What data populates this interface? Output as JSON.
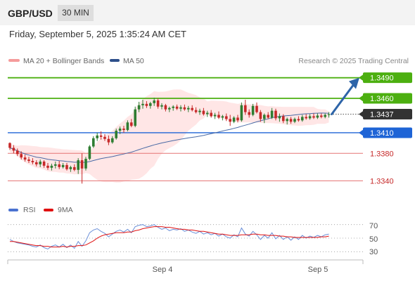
{
  "header": {
    "pair": "GBP/USD",
    "timeframe": "30 MIN"
  },
  "timestamp": "Friday, September 5, 2025 1:35:24 AM CET",
  "legend": {
    "ma20": "MA 20 + Bollinger Bands",
    "ma50": "MA 50"
  },
  "credit": "Research © 2025 Trading Central",
  "colors": {
    "bull": "#2e7d32",
    "bear": "#c62828",
    "resistance": "#4caf10",
    "support": "#1e64d6",
    "support_weak": "#e57373",
    "ma50": "#4a6aa5",
    "bollinger": "#ffd6d6",
    "current": "#333333",
    "rsi": "#6a8fd8",
    "rsi_ma": "#e01010",
    "arrow": "#2d64a8"
  },
  "chart_data": [
    {
      "type": "candlestick",
      "title": "GBP/USD",
      "timeframe": "30 MIN",
      "x_tick_labels": [
        "Sep 4",
        "Sep 5"
      ],
      "ylim": [
        1.332,
        1.3505
      ],
      "levels": [
        {
          "label": "1.3490",
          "value": 1.349,
          "kind": "resistance"
        },
        {
          "label": "1.3460",
          "value": 1.346,
          "kind": "resistance"
        },
        {
          "label": "1.3437",
          "value": 1.3437,
          "kind": "current"
        },
        {
          "label": "1.3410",
          "value": 1.341,
          "kind": "support"
        },
        {
          "label": "1.3380",
          "value": 1.338,
          "kind": "support_weak"
        },
        {
          "label": "1.3340",
          "value": 1.334,
          "kind": "support_weak"
        }
      ],
      "candles": [
        [
          1.3395,
          1.3396,
          1.3385,
          1.3388
        ],
        [
          1.3388,
          1.3392,
          1.338,
          1.3384
        ],
        [
          1.3384,
          1.3387,
          1.3376,
          1.3379
        ],
        [
          1.3379,
          1.3383,
          1.3371,
          1.3374
        ],
        [
          1.3374,
          1.3378,
          1.3368,
          1.3371
        ],
        [
          1.3371,
          1.3375,
          1.3366,
          1.3369
        ],
        [
          1.3369,
          1.3373,
          1.3364,
          1.3367
        ],
        [
          1.3367,
          1.337,
          1.3361,
          1.3364
        ],
        [
          1.3364,
          1.3371,
          1.336,
          1.3368
        ],
        [
          1.3368,
          1.337,
          1.3359,
          1.3362
        ],
        [
          1.3362,
          1.3366,
          1.3356,
          1.3359
        ],
        [
          1.3359,
          1.3365,
          1.3355,
          1.3362
        ],
        [
          1.3362,
          1.3368,
          1.3358,
          1.3364
        ],
        [
          1.3364,
          1.3369,
          1.3357,
          1.336
        ],
        [
          1.336,
          1.3366,
          1.3358,
          1.3363
        ],
        [
          1.3363,
          1.3366,
          1.3355,
          1.3357
        ],
        [
          1.3357,
          1.3362,
          1.3353,
          1.336
        ],
        [
          1.336,
          1.3364,
          1.3354,
          1.3356
        ],
        [
          1.3356,
          1.3373,
          1.335,
          1.337
        ],
        [
          1.337,
          1.338,
          1.3336,
          1.3358
        ],
        [
          1.3358,
          1.3375,
          1.3355,
          1.3372
        ],
        [
          1.3372,
          1.3392,
          1.337,
          1.339
        ],
        [
          1.339,
          1.3405,
          1.3388,
          1.3402
        ],
        [
          1.3402,
          1.341,
          1.3398,
          1.3406
        ],
        [
          1.3406,
          1.3412,
          1.34,
          1.3404
        ],
        [
          1.3404,
          1.3408,
          1.3398,
          1.3401
        ],
        [
          1.3401,
          1.3406,
          1.3392,
          1.3396
        ],
        [
          1.3396,
          1.3405,
          1.3394,
          1.3402
        ],
        [
          1.3402,
          1.3416,
          1.34,
          1.3413
        ],
        [
          1.3413,
          1.3419,
          1.3408,
          1.3416
        ],
        [
          1.3416,
          1.342,
          1.341,
          1.3414
        ],
        [
          1.3414,
          1.3428,
          1.3412,
          1.3425
        ],
        [
          1.3425,
          1.343,
          1.3418,
          1.342
        ],
        [
          1.342,
          1.3448,
          1.3418,
          1.3444
        ],
        [
          1.3444,
          1.3455,
          1.344,
          1.345
        ],
        [
          1.345,
          1.3458,
          1.3445,
          1.3452
        ],
        [
          1.3452,
          1.3456,
          1.3446,
          1.3449
        ],
        [
          1.3449,
          1.3455,
          1.3445,
          1.3453
        ],
        [
          1.3453,
          1.3461,
          1.3449,
          1.3457
        ],
        [
          1.3457,
          1.346,
          1.3445,
          1.3448
        ],
        [
          1.3448,
          1.3453,
          1.3444,
          1.345
        ],
        [
          1.345,
          1.3452,
          1.3441,
          1.3444
        ],
        [
          1.3444,
          1.3448,
          1.344,
          1.3446
        ],
        [
          1.3446,
          1.345,
          1.3442,
          1.3448
        ],
        [
          1.3448,
          1.3451,
          1.3443,
          1.3445
        ],
        [
          1.3445,
          1.345,
          1.3441,
          1.3447
        ],
        [
          1.3447,
          1.3451,
          1.3442,
          1.3444
        ],
        [
          1.3444,
          1.3449,
          1.344,
          1.3446
        ],
        [
          1.3446,
          1.345,
          1.3441,
          1.3443
        ],
        [
          1.3443,
          1.3447,
          1.3438,
          1.344
        ],
        [
          1.344,
          1.3445,
          1.3436,
          1.3442
        ],
        [
          1.3442,
          1.3446,
          1.3435,
          1.3437
        ],
        [
          1.3437,
          1.3442,
          1.3433,
          1.3439
        ],
        [
          1.3439,
          1.3443,
          1.3432,
          1.3434
        ],
        [
          1.3434,
          1.3439,
          1.343,
          1.3436
        ],
        [
          1.3436,
          1.3441,
          1.343,
          1.3432
        ],
        [
          1.3432,
          1.3436,
          1.3428,
          1.3434
        ],
        [
          1.3434,
          1.3438,
          1.3427,
          1.343
        ],
        [
          1.343,
          1.3436,
          1.342,
          1.3426
        ],
        [
          1.3426,
          1.3434,
          1.3424,
          1.3432
        ],
        [
          1.3432,
          1.3436,
          1.3425,
          1.3428
        ],
        [
          1.3428,
          1.3454,
          1.3426,
          1.345
        ],
        [
          1.345,
          1.3458,
          1.3436,
          1.344
        ],
        [
          1.344,
          1.3444,
          1.3432,
          1.3436
        ],
        [
          1.3436,
          1.3452,
          1.3434,
          1.3449
        ],
        [
          1.3449,
          1.3454,
          1.3438,
          1.344
        ],
        [
          1.344,
          1.3443,
          1.3426,
          1.343
        ],
        [
          1.343,
          1.3438,
          1.3424,
          1.3436
        ],
        [
          1.3436,
          1.344,
          1.343,
          1.3432
        ],
        [
          1.3432,
          1.3446,
          1.343,
          1.3442
        ],
        [
          1.3442,
          1.3445,
          1.3428,
          1.3431
        ],
        [
          1.3431,
          1.3438,
          1.3426,
          1.3434
        ],
        [
          1.3434,
          1.3437,
          1.3424,
          1.3427
        ],
        [
          1.3427,
          1.3432,
          1.3422,
          1.343
        ],
        [
          1.343,
          1.3433,
          1.3423,
          1.3426
        ],
        [
          1.3426,
          1.3432,
          1.3424,
          1.343
        ],
        [
          1.343,
          1.3434,
          1.3426,
          1.3428
        ],
        [
          1.3428,
          1.3436,
          1.3426,
          1.3433
        ],
        [
          1.3433,
          1.3437,
          1.3429,
          1.3431
        ],
        [
          1.3431,
          1.3437,
          1.3429,
          1.3434
        ],
        [
          1.3434,
          1.3438,
          1.343,
          1.3432
        ],
        [
          1.3432,
          1.3438,
          1.343,
          1.3435
        ],
        [
          1.3435,
          1.3438,
          1.3431,
          1.3433
        ],
        [
          1.3433,
          1.3438,
          1.3431,
          1.3436
        ],
        [
          1.3436,
          1.344,
          1.3432,
          1.3437
        ]
      ],
      "forecast_target": 1.349
    },
    {
      "type": "line",
      "title": "RSI",
      "series": [
        {
          "name": "RSI",
          "values": [
            48,
            45,
            43,
            42,
            41,
            40,
            38,
            37,
            40,
            36,
            34,
            38,
            40,
            37,
            41,
            36,
            40,
            35,
            45,
            38,
            46,
            58,
            62,
            64,
            60,
            57,
            52,
            56,
            60,
            62,
            59,
            63,
            58,
            67,
            69,
            70,
            67,
            68,
            70,
            66,
            63,
            65,
            61,
            63,
            62,
            64,
            60,
            62,
            59,
            57,
            60,
            56,
            58,
            55,
            57,
            53,
            56,
            52,
            50,
            55,
            52,
            65,
            56,
            53,
            60,
            55,
            48,
            54,
            50,
            58,
            49,
            54,
            48,
            52,
            47,
            52,
            48,
            54,
            50,
            53,
            51,
            54,
            52,
            55,
            56
          ]
        },
        {
          "name": "9MA",
          "values": [
            45,
            45,
            44,
            43,
            42,
            41,
            40,
            39,
            39,
            38,
            38,
            37,
            37,
            37,
            38,
            37,
            38,
            38,
            39,
            39,
            40,
            43,
            46,
            50,
            53,
            55,
            56,
            57,
            58,
            58,
            58,
            59,
            59,
            61,
            62,
            64,
            65,
            66,
            67,
            67,
            67,
            66,
            66,
            65,
            64,
            63,
            63,
            62,
            62,
            61,
            60,
            60,
            59,
            58,
            57,
            56,
            56,
            55,
            54,
            54,
            54,
            55,
            55,
            55,
            56,
            56,
            55,
            55,
            54,
            54,
            54,
            53,
            53,
            52,
            52,
            51,
            51,
            51,
            51,
            51,
            51,
            51,
            52,
            52,
            53
          ]
        }
      ],
      "y_tick_labels": [
        70,
        50,
        30
      ],
      "ylim": [
        20,
        80
      ]
    }
  ],
  "axis_labels": {
    "sep4": "Sep 4",
    "sep5": "Sep 5"
  },
  "rsi_ticks": {
    "t70": "70",
    "t50": "50",
    "t30": "30"
  },
  "rsi_legend": {
    "rsi": "RSI",
    "ma": "9MA"
  }
}
